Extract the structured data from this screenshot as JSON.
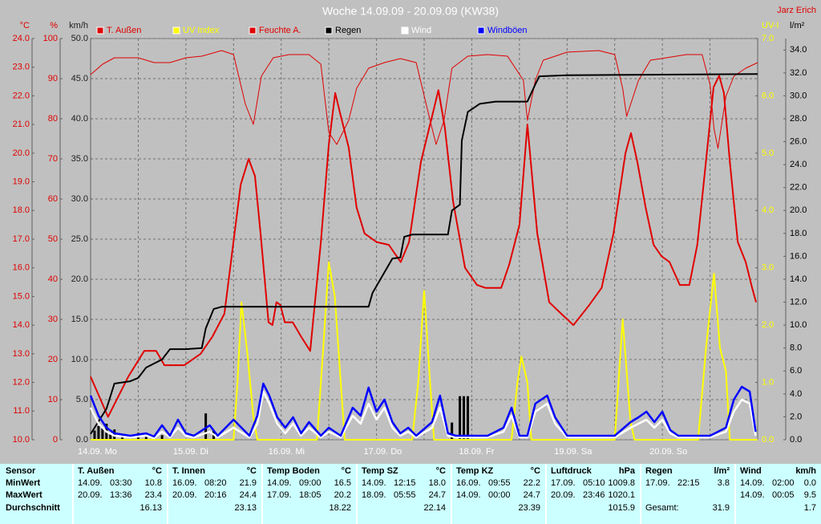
{
  "chart_data": {
    "type": "line",
    "title": "Woche 14.09.09 - 20.09.09 (KW38)",
    "author": "Jarz Erich",
    "grid": true,
    "xlim": [
      0,
      168
    ],
    "xticks": [
      {
        "value": 0,
        "label": "14.09. Mo"
      },
      {
        "value": 24,
        "label": "15.09. Di"
      },
      {
        "value": 48,
        "label": "16.09. Mi"
      },
      {
        "value": 72,
        "label": "17.09. Do"
      },
      {
        "value": 96,
        "label": "18.09. Fr"
      },
      {
        "value": 120,
        "label": "19.09. Sa"
      },
      {
        "value": 144,
        "label": "20.09. So"
      }
    ],
    "x_minor_ticks": [
      12,
      36,
      60,
      84,
      108,
      132,
      156
    ],
    "axes": {
      "temp": {
        "label": "°C",
        "color": "#e00000",
        "lim": [
          10,
          24
        ],
        "ticks": [
          {
            "value": 10,
            "label": "10.0"
          },
          {
            "value": 11,
            "label": "11.0"
          },
          {
            "value": 12,
            "label": "12.0"
          },
          {
            "value": 13,
            "label": "13.0"
          },
          {
            "value": 14,
            "label": "14.0"
          },
          {
            "value": 15,
            "label": "15.0"
          },
          {
            "value": 16,
            "label": "16.0"
          },
          {
            "value": 17,
            "label": "17.0"
          },
          {
            "value": 18,
            "label": "18.0"
          },
          {
            "value": 19,
            "label": "19.0"
          },
          {
            "value": 20,
            "label": "20.0"
          },
          {
            "value": 21,
            "label": "21.0"
          },
          {
            "value": 22,
            "label": "22.0"
          },
          {
            "value": 23,
            "label": "23.0"
          },
          {
            "value": 24,
            "label": "24.0"
          }
        ]
      },
      "hum": {
        "label": "%",
        "color": "#e00000",
        "lim": [
          0,
          100
        ],
        "ticks": [
          0,
          10,
          20,
          30,
          40,
          50,
          60,
          70,
          80,
          90,
          100
        ]
      },
      "wind": {
        "label": "km/h",
        "color": "#202020",
        "lim": [
          0,
          50
        ],
        "ticks": [
          {
            "value": 0,
            "label": "0.0"
          },
          {
            "value": 5,
            "label": "5.0"
          },
          {
            "value": 10,
            "label": "10.0"
          },
          {
            "value": 15,
            "label": "15.0"
          },
          {
            "value": 20,
            "label": "20.0"
          },
          {
            "value": 25,
            "label": "25.0"
          },
          {
            "value": 30,
            "label": "30.0"
          },
          {
            "value": 35,
            "label": "35.0"
          },
          {
            "value": 40,
            "label": "40.0"
          },
          {
            "value": 45,
            "label": "45.0"
          },
          {
            "value": 50,
            "label": "50.0"
          }
        ]
      },
      "uv": {
        "label": "UV-I",
        "color": "#ffff00",
        "lim": [
          0,
          7
        ],
        "ticks": [
          {
            "value": 0,
            "label": "0.0"
          },
          {
            "value": 1,
            "label": "1.0"
          },
          {
            "value": 2,
            "label": "2.0"
          },
          {
            "value": 3,
            "label": "3.0"
          },
          {
            "value": 4,
            "label": "4.0"
          },
          {
            "value": 5,
            "label": "5.0"
          },
          {
            "value": 6,
            "label": "6.0"
          },
          {
            "value": 7,
            "label": "7.0"
          }
        ]
      },
      "rain": {
        "label": "l/m²",
        "color": "#000000",
        "lim": [
          0,
          35
        ],
        "ticks": [
          {
            "value": 0,
            "label": "0.0"
          },
          {
            "value": 2,
            "label": "2.0"
          },
          {
            "value": 4,
            "label": "4.0"
          },
          {
            "value": 6,
            "label": "6.0"
          },
          {
            "value": 8,
            "label": "8.0"
          },
          {
            "value": 10,
            "label": "10.0"
          },
          {
            "value": 12,
            "label": "12.0"
          },
          {
            "value": 14,
            "label": "14.0"
          },
          {
            "value": 16,
            "label": "16.0"
          },
          {
            "value": 18,
            "label": "18.0"
          },
          {
            "value": 20,
            "label": "20.0"
          },
          {
            "value": 22,
            "label": "22.0"
          },
          {
            "value": 24,
            "label": "24.0"
          },
          {
            "value": 26,
            "label": "26.0"
          },
          {
            "value": 28,
            "label": "28.0"
          },
          {
            "value": 30,
            "label": "30.0"
          },
          {
            "value": 32,
            "label": "32.0"
          },
          {
            "value": 34,
            "label": "34.0"
          }
        ]
      }
    },
    "series": [
      {
        "name": "T. Außen",
        "color": "#e00000",
        "width": 2,
        "axis": "temp",
        "x": [
          0,
          4.4,
          9.5,
          13.5,
          16.5,
          18.6,
          23.6,
          27.7,
          30.7,
          33.7,
          37.8,
          39.8,
          41.4,
          42.8,
          44.8,
          45.8,
          46.8,
          47.8,
          48.9,
          50.9,
          53,
          55.3,
          58,
          60,
          61.6,
          63,
          65,
          67,
          69,
          72,
          75.1,
          78.1,
          80.2,
          83.2,
          86.2,
          87.6,
          89.2,
          91.3,
          94.3,
          97.3,
          99.4,
          103.4,
          105.4,
          108,
          110,
          112.5,
          115.5,
          118.5,
          121.6,
          125.6,
          128.7,
          131.7,
          134.7,
          136.1,
          137.7,
          139.8,
          141.8,
          143.8,
          145.8,
          148.4,
          150.8,
          152.8,
          154.9,
          156.9,
          158.3,
          159.5,
          161,
          163,
          165,
          166.6,
          167.6
        ],
        "values": [
          12.2,
          10.8,
          12.2,
          13.1,
          13.1,
          12.6,
          12.6,
          13.0,
          13.6,
          14.4,
          18.9,
          19.8,
          19.2,
          17.2,
          14.1,
          14.0,
          14.8,
          14.7,
          14.1,
          14.1,
          13.6,
          13.1,
          16.9,
          20.3,
          22.1,
          21.3,
          20.2,
          18.1,
          17.2,
          16.9,
          16.8,
          16.2,
          16.9,
          19.7,
          21.4,
          22.2,
          20.9,
          18.3,
          16.0,
          15.4,
          15.3,
          15.3,
          16.1,
          17.5,
          21.0,
          17.2,
          14.8,
          14.4,
          14.0,
          14.7,
          15.3,
          17.2,
          20.0,
          20.7,
          19.7,
          18.1,
          16.8,
          16.4,
          16.2,
          15.4,
          15.4,
          16.8,
          19.6,
          22.3,
          22.7,
          22.1,
          19.7,
          16.9,
          16.2,
          15.3,
          14.8
        ]
      },
      {
        "name": "UV Index",
        "color": "#ffff00",
        "width": 2,
        "axis": "uv",
        "x": [
          0,
          36,
          37,
          38,
          39.5,
          41,
          42,
          57,
          58.5,
          60,
          61.5,
          63,
          64,
          81,
          82.5,
          84,
          85.5,
          86.5,
          106,
          107.5,
          108.5,
          110,
          111,
          132,
          134,
          136,
          137,
          153,
          155,
          157,
          158.5,
          160,
          161,
          168
        ],
        "values": [
          0,
          0,
          1.0,
          2.4,
          1.5,
          0.4,
          0,
          0,
          1.5,
          3.1,
          2.5,
          1.0,
          0,
          0,
          1.0,
          2.6,
          1.0,
          0,
          0,
          1.0,
          1.45,
          1.0,
          0,
          0,
          2.1,
          0.3,
          0,
          0,
          1.6,
          2.9,
          1.6,
          1.2,
          0,
          0
        ]
      },
      {
        "name": "Feuchte A.",
        "color": "#e00000",
        "width": 1,
        "axis": "hum",
        "x": [
          0,
          3,
          6,
          12,
          16,
          20,
          24,
          28,
          33,
          36,
          39,
          41,
          43,
          46,
          50,
          55,
          58,
          60,
          62,
          65,
          67,
          70,
          74,
          78,
          82,
          85,
          87,
          89,
          91,
          95,
          100,
          105,
          109,
          110,
          112,
          114,
          120,
          128,
          132,
          134,
          135,
          138,
          141,
          145,
          150,
          154,
          156,
          157,
          158,
          160,
          162,
          165,
          168
        ],
        "values": [
          91,
          93.6,
          95.2,
          95.2,
          94,
          94,
          95.2,
          95.6,
          97,
          96,
          83.6,
          78.6,
          90.6,
          95.2,
          96,
          96,
          93.6,
          76.6,
          73.6,
          79.6,
          87.6,
          92.6,
          94,
          95,
          94,
          81.6,
          73.6,
          79.6,
          92.6,
          95.6,
          96,
          95.6,
          89.6,
          79.6,
          89.6,
          94.6,
          96.6,
          97,
          96,
          87.6,
          80.6,
          89.6,
          94.6,
          95.2,
          96,
          96,
          88.6,
          77.6,
          72.6,
          85.6,
          90.6,
          92.6,
          94
        ]
      },
      {
        "name": "Regen",
        "color": "#000000",
        "width": 2,
        "axis": "rain",
        "x": [
          0,
          4,
          6,
          10,
          12,
          14,
          18,
          20,
          24,
          28,
          29,
          31,
          33,
          70,
          71,
          73,
          76,
          78,
          79,
          81,
          90,
          91,
          93,
          93.5,
          95,
          98,
          102,
          110,
          112,
          113,
          120,
          168
        ],
        "values": [
          0.5,
          2.7,
          4.9,
          5.1,
          5.4,
          6.3,
          7.0,
          7.9,
          7.9,
          8.0,
          9.7,
          11.4,
          11.6,
          11.6,
          12.8,
          14.0,
          15.8,
          15.9,
          17.7,
          17.9,
          17.9,
          20.0,
          20.5,
          26.1,
          28.6,
          29.3,
          29.5,
          29.5,
          31.0,
          31.7,
          31.8,
          31.9
        ]
      },
      {
        "name": "Wind",
        "color": "#ffffff",
        "width": 2.5,
        "axis": "wind",
        "x": [
          0,
          2,
          4,
          6,
          10,
          14,
          16,
          18,
          20,
          22,
          24,
          26,
          30,
          32,
          36,
          40,
          42,
          43.5,
          45,
          47,
          49,
          51,
          53,
          55,
          58,
          60,
          63,
          66,
          68,
          70,
          72,
          74,
          76,
          78,
          80,
          82,
          86,
          88,
          90,
          92,
          96,
          100,
          104,
          106,
          108,
          110,
          112,
          115,
          117,
          120,
          124,
          128,
          132,
          136,
          138,
          140,
          142,
          144,
          146,
          148,
          152,
          156,
          160,
          162,
          164,
          166,
          167.5
        ],
        "values": [
          4.0,
          2.0,
          1.0,
          0.5,
          0.3,
          0.5,
          0.2,
          1.0,
          0.3,
          1.5,
          0.5,
          0.3,
          1.0,
          0.3,
          1.5,
          0.3,
          2.0,
          6.0,
          4.5,
          2.0,
          0.8,
          2.0,
          0.5,
          1.5,
          0.3,
          1.0,
          0.3,
          3.0,
          2.0,
          4.5,
          2.5,
          4.0,
          1.5,
          0.5,
          1.0,
          0.3,
          1.5,
          4.0,
          0.5,
          0.3,
          0.3,
          0.3,
          1.0,
          3.0,
          0.3,
          0.3,
          3.5,
          4.5,
          2.0,
          0.3,
          0.3,
          0.3,
          0.3,
          1.5,
          2.0,
          2.5,
          1.5,
          2.5,
          0.8,
          0.3,
          0.3,
          0.3,
          1.0,
          3.5,
          5.0,
          4.5,
          0.5
        ]
      },
      {
        "name": "Windböen",
        "color": "#0000ff",
        "width": 2.5,
        "axis": "wind",
        "x": [
          0,
          2,
          4,
          6,
          10,
          14,
          16,
          18,
          20,
          22,
          24,
          26,
          30,
          32,
          36,
          40,
          42,
          43.5,
          45,
          47,
          49,
          51,
          53,
          55,
          58,
          60,
          63,
          66,
          68,
          70,
          72,
          74,
          76,
          78,
          80,
          82,
          86,
          88,
          90,
          92,
          96,
          100,
          104,
          106,
          108,
          110,
          112,
          115,
          117,
          120,
          124,
          128,
          132,
          136,
          138,
          140,
          142,
          144,
          146,
          148,
          152,
          156,
          160,
          162,
          164,
          166,
          167.5
        ],
        "values": [
          5.5,
          3.0,
          1.5,
          0.8,
          0.5,
          0.8,
          0.4,
          1.8,
          0.5,
          2.5,
          0.8,
          0.5,
          1.8,
          0.5,
          2.5,
          0.5,
          3.0,
          7.0,
          5.5,
          2.8,
          1.5,
          2.8,
          0.8,
          2.2,
          0.5,
          1.5,
          0.5,
          4.0,
          3.0,
          6.5,
          3.5,
          5.0,
          2.2,
          0.8,
          1.5,
          0.5,
          2.2,
          5.5,
          0.8,
          0.5,
          0.5,
          0.5,
          1.5,
          4.0,
          0.5,
          0.5,
          4.5,
          5.5,
          2.8,
          0.5,
          0.5,
          0.5,
          0.5,
          2.2,
          2.8,
          3.5,
          2.2,
          3.5,
          1.2,
          0.5,
          0.5,
          0.5,
          1.5,
          5.0,
          6.6,
          6.0,
          1.0
        ]
      }
    ],
    "rain_bars": {
      "color": "#000000",
      "axis": "rain",
      "x": [
        1,
        2,
        3,
        4,
        5,
        6,
        8,
        12,
        14,
        18,
        29,
        31,
        91,
        93,
        94,
        95
      ],
      "values": [
        0.8,
        1.2,
        1.0,
        1.4,
        0.6,
        0.9,
        0.5,
        0.6,
        0.4,
        0.4,
        2.3,
        0.8,
        1.5,
        3.8,
        3.8,
        3.8
      ]
    }
  },
  "stats": {
    "row_labels": [
      "Sensor",
      "MinWert",
      "MaxWert",
      "Durchschnitt"
    ],
    "columns": [
      {
        "sensor": "T. Außen",
        "unit": "°C",
        "min": {
          "date": "14.09.",
          "time": "03:30",
          "value": "10.8"
        },
        "max": {
          "date": "20.09.",
          "time": "13:36",
          "value": "23.4"
        },
        "avg": "16.13"
      },
      {
        "sensor": "T. Innen",
        "unit": "°C",
        "min": {
          "date": "16.09.",
          "time": "08:20",
          "value": "21.9"
        },
        "max": {
          "date": "20.09.",
          "time": "20:16",
          "value": "24.4"
        },
        "avg": "23.13"
      },
      {
        "sensor": "Temp Boden",
        "unit": "°C",
        "min": {
          "date": "14.09.",
          "time": "09:00",
          "value": "16.5"
        },
        "max": {
          "date": "17.09.",
          "time": "18:05",
          "value": "20.2"
        },
        "avg": "18.22"
      },
      {
        "sensor": "Temp SZ",
        "unit": "°C",
        "min": {
          "date": "14.09.",
          "time": "12:15",
          "value": "18.0"
        },
        "max": {
          "date": "18.09.",
          "time": "05:55",
          "value": "24.7"
        },
        "avg": "22.14"
      },
      {
        "sensor": "Temp KZ",
        "unit": "°C",
        "min": {
          "date": "16.09.",
          "time": "09:55",
          "value": "22.2"
        },
        "max": {
          "date": "14.09.",
          "time": "00:00",
          "value": "24.7"
        },
        "avg": "23.39"
      },
      {
        "sensor": "Luftdruck",
        "unit": "hPa",
        "min": {
          "date": "17.09.",
          "time": "05:10",
          "value": "1009.8"
        },
        "max": {
          "date": "20.09.",
          "time": "23:46",
          "value": "1020.1"
        },
        "avg": "1015.9"
      },
      {
        "sensor": "Regen",
        "unit": "l/m²",
        "min": {
          "date": "17.09.",
          "time": "22:15",
          "value": "3.8"
        },
        "total_label": "Gesamt:",
        "total": "31.9"
      },
      {
        "sensor": "Wind",
        "unit": "km/h",
        "min": {
          "date": "14.09.",
          "time": "02:00",
          "value": "0.0"
        },
        "max": {
          "date": "14.09.",
          "time": "00:05",
          "value": "9.5"
        },
        "avg": "1.7"
      }
    ]
  }
}
